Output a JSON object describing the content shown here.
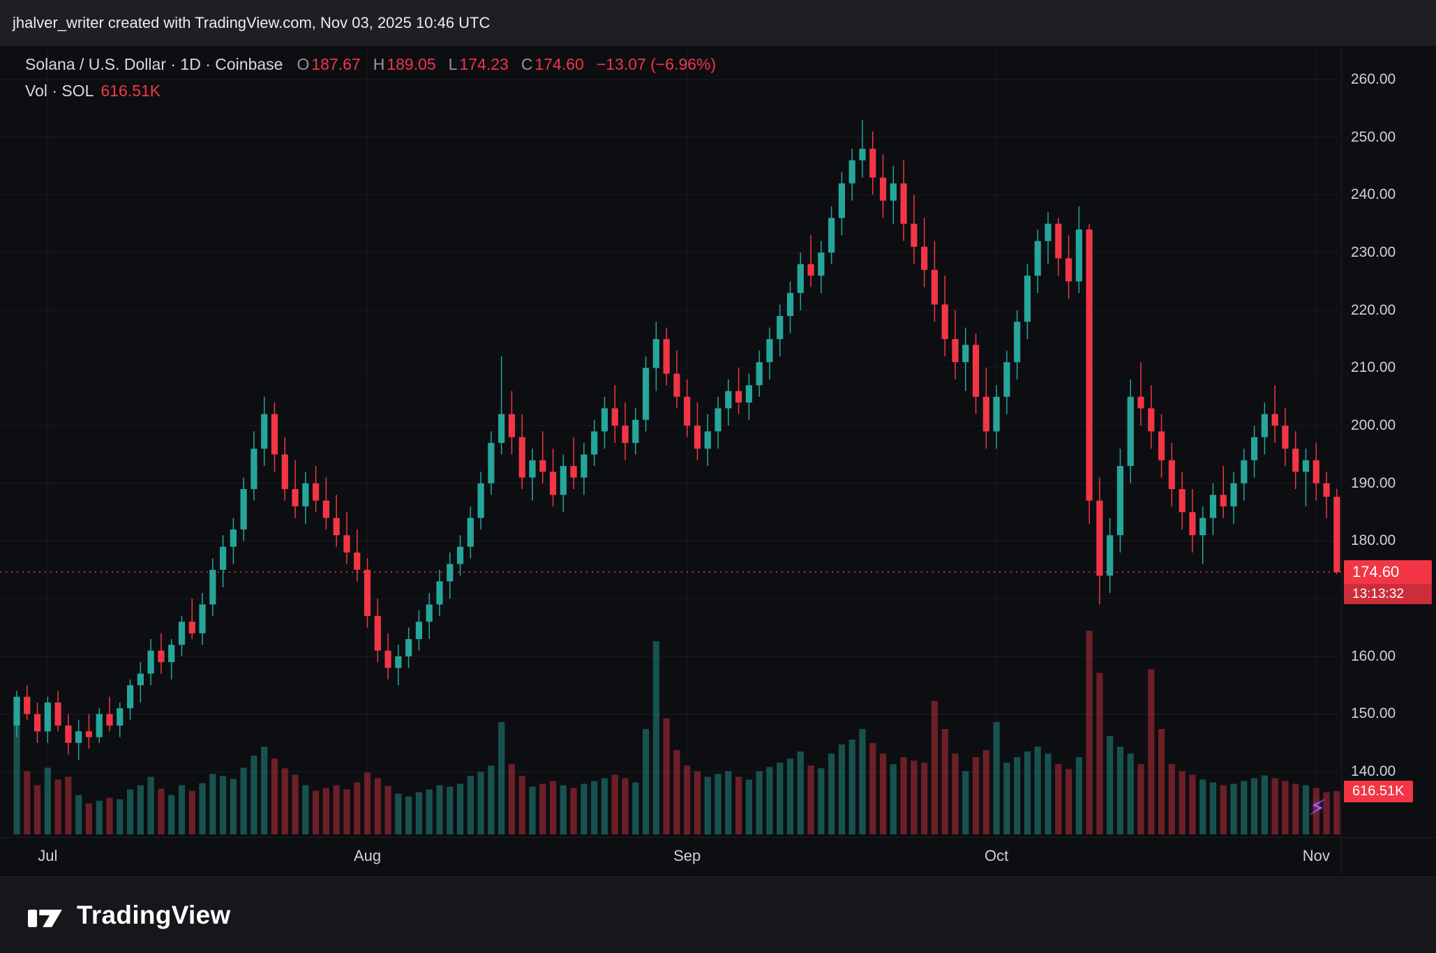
{
  "attribution": "jhalver_writer created with TradingView.com, Nov 03, 2025 10:46 UTC",
  "legend": {
    "symbol_title": "Solana / U.S. Dollar · 1D · Coinbase",
    "ohlc": {
      "o_label": "O",
      "o": "187.67",
      "h_label": "H",
      "h": "189.05",
      "l_label": "L",
      "l": "174.23",
      "c_label": "C",
      "c": "174.60",
      "change": "−13.07 (−6.96%)"
    },
    "volume_label": "Vol · SOL",
    "volume_value": "616.51K"
  },
  "price_axis": {
    "labels": [
      {
        "label": "260.00",
        "price": 260
      },
      {
        "label": "250.00",
        "price": 250
      },
      {
        "label": "240.00",
        "price": 240
      },
      {
        "label": "230.00",
        "price": 230
      },
      {
        "label": "220.00",
        "price": 220
      },
      {
        "label": "210.00",
        "price": 210
      },
      {
        "label": "200.00",
        "price": 200
      },
      {
        "label": "190.00",
        "price": 190
      },
      {
        "label": "180.00",
        "price": 180
      },
      {
        "label": "160.00",
        "price": 160
      },
      {
        "label": "150.00",
        "price": 150
      },
      {
        "label": "140.00",
        "price": 140
      }
    ],
    "price_badge": {
      "price": "174.60",
      "countdown": "13:13:32"
    },
    "volume_badge": "616.51K"
  },
  "time_axis": {
    "labels": [
      {
        "label": "Jul",
        "candle_index": 3
      },
      {
        "label": "Aug",
        "candle_index": 34
      },
      {
        "label": "Sep",
        "candle_index": 65
      },
      {
        "label": "Oct",
        "candle_index": 95
      },
      {
        "label": "Nov",
        "candle_index": 126
      }
    ]
  },
  "footer": {
    "brand": "TradingView"
  },
  "colors": {
    "candle_up": "#26a69a",
    "candle_down": "#f23645",
    "volume_up": "rgba(38,166,154,0.45)",
    "volume_down": "rgba(242,54,69,0.42)",
    "last_price_line": "#f23645",
    "badge_bg": "#f23645",
    "accent_purple": "#a259ff"
  },
  "chart_data": {
    "type": "candlestick",
    "title": "Solana / U.S. Dollar, 1D, Coinbase",
    "symbol": "SOL/USD",
    "interval": "1D",
    "exchange": "Coinbase",
    "last": {
      "open": 187.67,
      "high": 189.05,
      "low": 174.23,
      "close": 174.6,
      "change": -13.07,
      "change_pct": -6.96,
      "volume": "616.51K"
    },
    "last_price_line": 174.6,
    "y_axis": {
      "min": 140,
      "max": 260,
      "step": 10
    },
    "x_axis": {
      "labels": [
        "Jul",
        "Aug",
        "Sep",
        "Oct",
        "Nov"
      ],
      "tick_candle_indices": [
        3,
        34,
        65,
        95,
        126
      ]
    },
    "candles_format": [
      "open",
      "high",
      "low",
      "close",
      "volume_k"
    ],
    "candles": [
      [
        148,
        154,
        146,
        153,
        1650
      ],
      [
        153,
        155,
        149,
        150,
        900
      ],
      [
        150,
        152,
        145,
        147,
        700
      ],
      [
        147,
        153,
        145,
        152,
        950
      ],
      [
        152,
        154,
        147,
        148,
        780
      ],
      [
        148,
        150,
        143,
        145,
        820
      ],
      [
        145,
        149,
        142,
        147,
        560
      ],
      [
        147,
        150,
        144,
        146,
        440
      ],
      [
        146,
        151,
        145,
        150,
        480
      ],
      [
        150,
        153,
        147,
        148,
        520
      ],
      [
        148,
        152,
        146,
        151,
        500
      ],
      [
        151,
        156,
        149,
        155,
        640
      ],
      [
        155,
        159,
        152,
        157,
        700
      ],
      [
        157,
        163,
        155,
        161,
        820
      ],
      [
        161,
        164,
        157,
        159,
        650
      ],
      [
        159,
        163,
        156,
        162,
        560
      ],
      [
        162,
        167,
        160,
        166,
        700
      ],
      [
        166,
        170,
        163,
        164,
        620
      ],
      [
        164,
        171,
        162,
        169,
        730
      ],
      [
        169,
        177,
        167,
        175,
        860
      ],
      [
        175,
        181,
        172,
        179,
        830
      ],
      [
        179,
        184,
        176,
        182,
        790
      ],
      [
        182,
        191,
        180,
        189,
        950
      ],
      [
        189,
        199,
        187,
        196,
        1120
      ],
      [
        196,
        205,
        193,
        202,
        1250
      ],
      [
        202,
        204,
        192,
        195,
        1080
      ],
      [
        195,
        198,
        187,
        189,
        940
      ],
      [
        189,
        194,
        184,
        186,
        850
      ],
      [
        186,
        192,
        183,
        190,
        700
      ],
      [
        190,
        193,
        185,
        187,
        620
      ],
      [
        187,
        191,
        182,
        184,
        660
      ],
      [
        184,
        188,
        179,
        181,
        700
      ],
      [
        181,
        185,
        176,
        178,
        640
      ],
      [
        178,
        182,
        173,
        175,
        740
      ],
      [
        175,
        177,
        165,
        167,
        880
      ],
      [
        167,
        170,
        159,
        161,
        800
      ],
      [
        161,
        164,
        156,
        158,
        690
      ],
      [
        158,
        162,
        155,
        160,
        580
      ],
      [
        160,
        165,
        158,
        163,
        540
      ],
      [
        163,
        168,
        161,
        166,
        600
      ],
      [
        166,
        171,
        163,
        169,
        640
      ],
      [
        169,
        175,
        167,
        173,
        700
      ],
      [
        173,
        178,
        170,
        176,
        680
      ],
      [
        176,
        181,
        174,
        179,
        720
      ],
      [
        179,
        186,
        177,
        184,
        830
      ],
      [
        184,
        192,
        182,
        190,
        890
      ],
      [
        190,
        199,
        188,
        197,
        980
      ],
      [
        197,
        212,
        195,
        202,
        1600
      ],
      [
        202,
        206,
        195,
        198,
        1000
      ],
      [
        198,
        202,
        189,
        191,
        830
      ],
      [
        191,
        196,
        187,
        194,
        680
      ],
      [
        194,
        199,
        190,
        192,
        720
      ],
      [
        192,
        196,
        186,
        188,
        760
      ],
      [
        188,
        195,
        185,
        193,
        700
      ],
      [
        193,
        198,
        189,
        191,
        660
      ],
      [
        191,
        197,
        188,
        195,
        720
      ],
      [
        195,
        201,
        193,
        199,
        760
      ],
      [
        199,
        205,
        196,
        203,
        800
      ],
      [
        203,
        207,
        197,
        200,
        850
      ],
      [
        200,
        204,
        194,
        197,
        800
      ],
      [
        197,
        203,
        195,
        201,
        740
      ],
      [
        201,
        212,
        199,
        210,
        1500
      ],
      [
        210,
        218,
        206,
        215,
        2750
      ],
      [
        215,
        217,
        207,
        209,
        1650
      ],
      [
        209,
        213,
        203,
        205,
        1200
      ],
      [
        205,
        208,
        198,
        200,
        980
      ],
      [
        200,
        204,
        194,
        196,
        900
      ],
      [
        196,
        202,
        193,
        199,
        820
      ],
      [
        199,
        205,
        196,
        203,
        860
      ],
      [
        203,
        208,
        200,
        206,
        900
      ],
      [
        206,
        210,
        202,
        204,
        820
      ],
      [
        204,
        209,
        201,
        207,
        780
      ],
      [
        207,
        213,
        205,
        211,
        900
      ],
      [
        211,
        217,
        208,
        215,
        960
      ],
      [
        215,
        221,
        212,
        219,
        1020
      ],
      [
        219,
        225,
        216,
        223,
        1080
      ],
      [
        223,
        230,
        220,
        228,
        1180
      ],
      [
        228,
        233,
        224,
        226,
        980
      ],
      [
        226,
        232,
        223,
        230,
        940
      ],
      [
        230,
        238,
        228,
        236,
        1150
      ],
      [
        236,
        244,
        233,
        242,
        1280
      ],
      [
        242,
        248,
        239,
        246,
        1350
      ],
      [
        246,
        253,
        243,
        248,
        1500
      ],
      [
        248,
        251,
        240,
        243,
        1300
      ],
      [
        243,
        247,
        236,
        239,
        1150
      ],
      [
        239,
        245,
        235,
        242,
        1000
      ],
      [
        242,
        246,
        232,
        235,
        1100
      ],
      [
        235,
        240,
        228,
        231,
        1050
      ],
      [
        231,
        236,
        224,
        227,
        1020
      ],
      [
        227,
        232,
        218,
        221,
        1900
      ],
      [
        221,
        226,
        212,
        215,
        1500
      ],
      [
        215,
        220,
        208,
        211,
        1150
      ],
      [
        211,
        217,
        206,
        214,
        900
      ],
      [
        214,
        216,
        202,
        205,
        1100
      ],
      [
        205,
        210,
        196,
        199,
        1200
      ],
      [
        199,
        207,
        196,
        205,
        1600
      ],
      [
        205,
        213,
        202,
        211,
        1020
      ],
      [
        211,
        220,
        208,
        218,
        1100
      ],
      [
        218,
        228,
        215,
        226,
        1180
      ],
      [
        226,
        234,
        223,
        232,
        1250
      ],
      [
        232,
        237,
        228,
        235,
        1150
      ],
      [
        235,
        236,
        226,
        229,
        1000
      ],
      [
        229,
        233,
        222,
        225,
        930
      ],
      [
        225,
        238,
        223,
        234,
        1100
      ],
      [
        234,
        235,
        183,
        187,
        2900
      ],
      [
        187,
        191,
        169,
        174,
        2300
      ],
      [
        174,
        184,
        171,
        181,
        1400
      ],
      [
        181,
        196,
        178,
        193,
        1250
      ],
      [
        193,
        208,
        190,
        205,
        1150
      ],
      [
        205,
        211,
        200,
        203,
        1000
      ],
      [
        203,
        207,
        196,
        199,
        2350
      ],
      [
        199,
        202,
        191,
        194,
        1500
      ],
      [
        194,
        197,
        186,
        189,
        1000
      ],
      [
        189,
        192,
        182,
        185,
        900
      ],
      [
        185,
        189,
        178,
        181,
        850
      ],
      [
        181,
        186,
        176,
        184,
        780
      ],
      [
        184,
        190,
        181,
        188,
        740
      ],
      [
        188,
        193,
        184,
        186,
        700
      ],
      [
        186,
        192,
        183,
        190,
        720
      ],
      [
        190,
        196,
        187,
        194,
        760
      ],
      [
        194,
        200,
        191,
        198,
        800
      ],
      [
        198,
        204,
        195,
        202,
        840
      ],
      [
        202,
        207,
        197,
        200,
        800
      ],
      [
        200,
        203,
        193,
        196,
        760
      ],
      [
        196,
        199,
        189,
        192,
        720
      ],
      [
        192,
        196,
        186,
        194,
        700
      ],
      [
        194,
        197,
        187,
        190,
        660
      ],
      [
        190,
        192,
        184,
        187.67,
        600
      ],
      [
        187.67,
        189.05,
        174.23,
        174.6,
        616.51
      ]
    ]
  }
}
